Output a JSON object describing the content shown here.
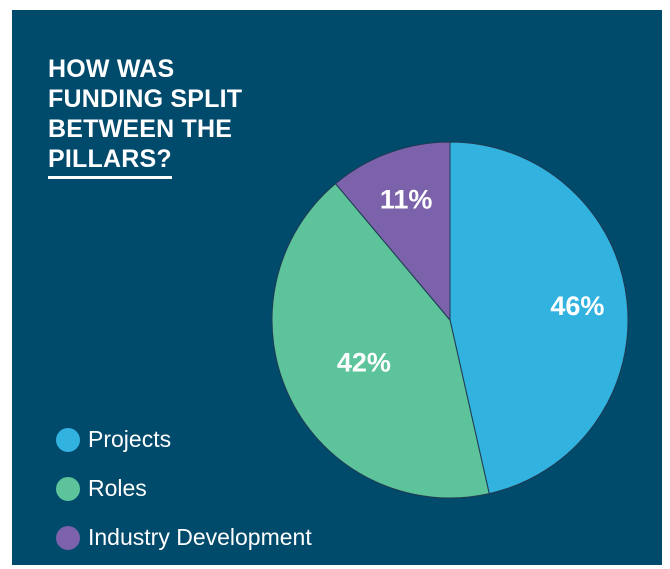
{
  "page": {
    "background": "#ffffff",
    "panel_color": "#004a6b"
  },
  "chart_data": {
    "type": "pie",
    "title_lines": [
      "HOW WAS",
      "FUNDING SPLIT",
      "BETWEEN THE",
      "PILLARS?"
    ],
    "categories": [
      "Projects",
      "Roles",
      "Industry Development"
    ],
    "values": [
      46,
      42,
      11
    ],
    "labels": [
      "46%",
      "42%",
      "11%"
    ],
    "colors": [
      "#31b2df",
      "#5dc39a",
      "#7b62ab"
    ],
    "start_angle": "12 o'clock",
    "direction": "clockwise",
    "legend_position": "bottom-left"
  }
}
